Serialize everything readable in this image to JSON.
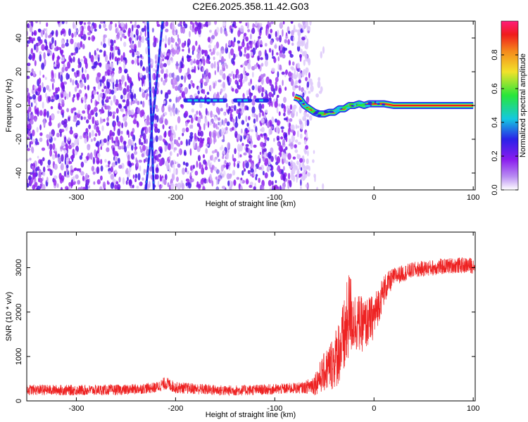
{
  "title": "C2E6.2025.358.11.42.G03",
  "colors": {
    "snr_line": "#ee2222",
    "signal_core": "#ee1c1c",
    "colormap": [
      "#ffffff",
      "#9b20f2",
      "#2a22e8",
      "#14c8e0",
      "#28e63a",
      "#f2e22a",
      "#f58a1c",
      "#f01c1c",
      "#ff1c7a"
    ]
  },
  "chart_data": [
    {
      "type": "heatmap",
      "title": "C2E6.2025.358.11.42.G03",
      "xlabel": "Height of straight line (km)",
      "ylabel": "Frequency (Hz)",
      "xlim": [
        -350,
        102
      ],
      "ylim": [
        -50,
        50
      ],
      "x_ticks": [
        -300,
        -200,
        -100,
        0,
        100
      ],
      "y_ticks": [
        -40,
        -20,
        0,
        20,
        40
      ],
      "colorbar": {
        "label": "Normalized spectral amplitude",
        "range": [
          0,
          1
        ],
        "ticks": [
          0.0,
          0.2,
          0.4,
          0.6,
          0.8
        ],
        "tick_labels": [
          "0.0",
          "0.2",
          "0.4",
          "0.6",
          "0.8"
        ]
      },
      "signal_track": {
        "x": [
          -190,
          -175,
          -160,
          -150,
          -140,
          -130,
          -120,
          -110,
          -100,
          -80,
          -75,
          -70,
          -65,
          -60,
          -55,
          -50,
          -45,
          -40,
          -35,
          -30,
          -25,
          -20,
          -15,
          -10,
          -5,
          0,
          5,
          10,
          20,
          50,
          100
        ],
        "y": [
          3,
          3,
          3,
          3,
          3,
          3,
          3,
          3,
          3,
          5,
          4,
          0,
          -2,
          -4,
          -5,
          -5,
          -4,
          -4,
          -2,
          -2,
          0,
          0,
          1,
          0,
          1,
          1,
          1,
          1,
          0,
          0,
          0
        ]
      },
      "diagonal_tracks": [
        {
          "x": [
            -228,
            -222
          ],
          "y": [
            50,
            -50
          ]
        },
        {
          "x": [
            -213,
            -230
          ],
          "y": [
            50,
            -50
          ]
        }
      ],
      "noise_extent_x": [
        -350,
        -65
      ]
    },
    {
      "type": "line",
      "xlabel": "Height of straight line (km)",
      "ylabel": "SNR (10 * v/v)",
      "xlim": [
        -350,
        102
      ],
      "ylim": [
        0,
        3800
      ],
      "x_ticks": [
        -300,
        -200,
        -100,
        0,
        100
      ],
      "y_ticks": [
        0,
        1000,
        2000,
        3000
      ],
      "envelope": {
        "x": [
          -350,
          -300,
          -250,
          -220,
          -210,
          -200,
          -150,
          -100,
          -70,
          -60,
          -50,
          -40,
          -30,
          -25,
          -20,
          -10,
          0,
          10,
          20,
          40,
          60,
          80,
          100
        ],
        "mean": [
          250,
          240,
          250,
          300,
          400,
          300,
          230,
          260,
          300,
          380,
          650,
          900,
          1400,
          2000,
          1800,
          1700,
          1900,
          2500,
          2800,
          2950,
          3000,
          3050,
          3050
        ],
        "spread": [
          120,
          120,
          120,
          120,
          150,
          130,
          120,
          120,
          130,
          250,
          450,
          650,
          900,
          1000,
          700,
          600,
          500,
          350,
          200,
          180,
          180,
          180,
          180
        ]
      }
    }
  ]
}
